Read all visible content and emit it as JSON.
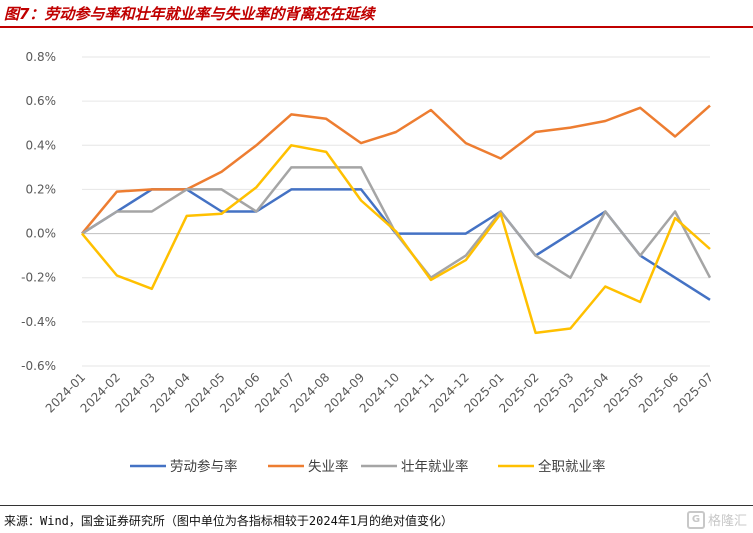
{
  "title": "图7：劳动参与率和壮年就业率与失业率的背离还在延续",
  "source": "来源：Wind，国金证券研究所（图中单位为各指标相较于2024年1月的绝对值变化）",
  "watermark": "格隆汇",
  "chart_data": {
    "type": "line",
    "title": "",
    "xlabel": "",
    "ylabel": "",
    "ylim": [
      -0.6,
      0.8
    ],
    "ystep": 0.2,
    "y_unit": "%",
    "grid": true,
    "legend_position": "bottom",
    "x": [
      "2024-01",
      "2024-02",
      "2024-03",
      "2024-04",
      "2024-05",
      "2024-06",
      "2024-07",
      "2024-08",
      "2024-09",
      "2024-10",
      "2024-11",
      "2024-12",
      "2025-01",
      "2025-02",
      "2025-03",
      "2025-04",
      "2025-05",
      "2025-06",
      "2025-07"
    ],
    "series": [
      {
        "name": "劳动参与率",
        "color": "#4472c4",
        "values": [
          0.0,
          0.1,
          0.2,
          0.2,
          0.1,
          0.1,
          0.2,
          0.2,
          0.2,
          0.0,
          0.0,
          0.0,
          0.1,
          -0.1,
          0.0,
          0.1,
          -0.1,
          -0.2,
          -0.3
        ]
      },
      {
        "name": "失业率",
        "color": "#ed7d31",
        "values": [
          0.0,
          0.19,
          0.2,
          0.2,
          0.28,
          0.4,
          0.54,
          0.52,
          0.41,
          0.46,
          0.56,
          0.41,
          0.34,
          0.46,
          0.48,
          0.51,
          0.57,
          0.44,
          0.58
        ]
      },
      {
        "name": "壮年就业率",
        "color": "#a5a5a5",
        "values": [
          0.0,
          0.1,
          0.1,
          0.2,
          0.2,
          0.1,
          0.3,
          0.3,
          0.3,
          0.0,
          -0.2,
          -0.1,
          0.1,
          -0.1,
          -0.2,
          0.1,
          -0.1,
          0.1,
          -0.2
        ]
      },
      {
        "name": "全职就业率",
        "color": "#ffc000",
        "values": [
          0.0,
          -0.19,
          -0.25,
          0.08,
          0.09,
          0.21,
          0.4,
          0.37,
          0.15,
          0.01,
          -0.21,
          -0.12,
          0.09,
          -0.45,
          -0.43,
          -0.24,
          -0.31,
          0.07,
          -0.07
        ]
      }
    ]
  }
}
